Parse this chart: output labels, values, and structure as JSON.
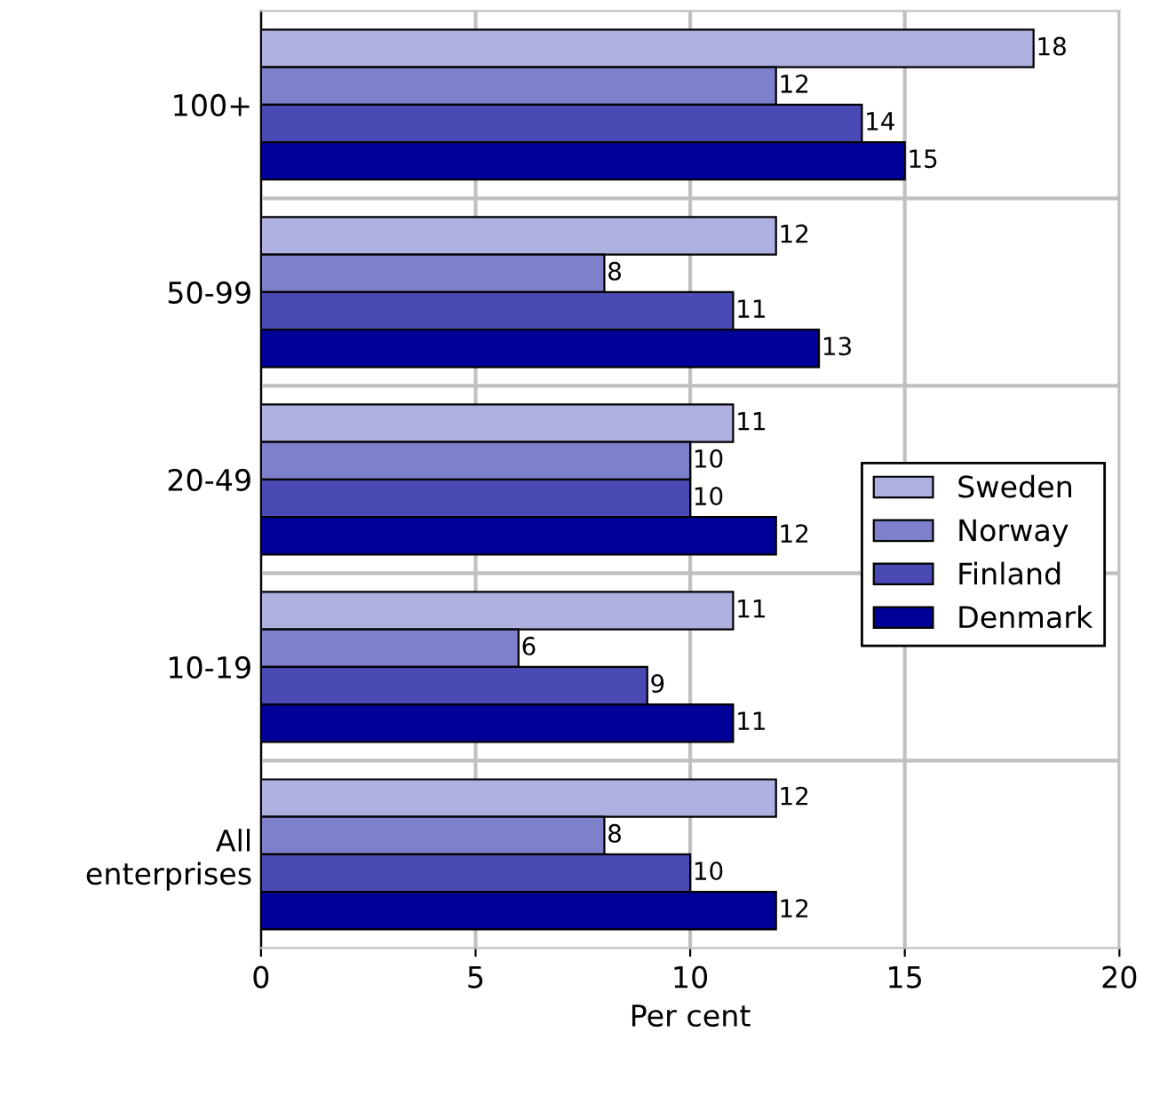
{
  "chart_data": {
    "type": "bar",
    "orientation": "horizontal",
    "xlabel": "Per cent",
    "categories": [
      "100+",
      "50-99",
      "20-49",
      "10-19",
      "All\nenterprises"
    ],
    "series": [
      {
        "name": "Sweden",
        "color": "#aeb0e0",
        "values": [
          18,
          12,
          11,
          11,
          12
        ]
      },
      {
        "name": "Norway",
        "color": "#7f80cc",
        "values": [
          12,
          8,
          10,
          6,
          8
        ]
      },
      {
        "name": "Finland",
        "color": "#4a4ab4",
        "values": [
          14,
          11,
          10,
          9,
          10
        ]
      },
      {
        "name": "Denmark",
        "color": "#000099",
        "values": [
          15,
          13,
          12,
          11,
          12
        ]
      }
    ],
    "data_labels": true,
    "xlim": [
      0,
      20
    ],
    "xticks": [
      0,
      5,
      10,
      15,
      20
    ],
    "grid": true,
    "legend": "right"
  }
}
